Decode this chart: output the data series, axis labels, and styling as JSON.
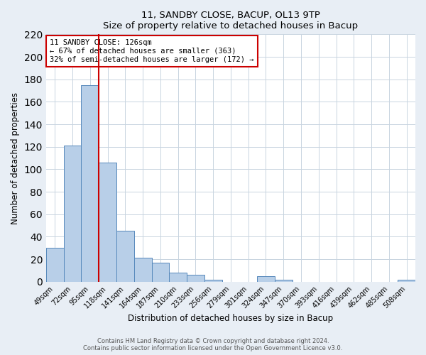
{
  "title": "11, SANDBY CLOSE, BACUP, OL13 9TP",
  "subtitle": "Size of property relative to detached houses in Bacup",
  "xlabel": "Distribution of detached houses by size in Bacup",
  "ylabel": "Number of detached properties",
  "categories": [
    "49sqm",
    "72sqm",
    "95sqm",
    "118sqm",
    "141sqm",
    "164sqm",
    "187sqm",
    "210sqm",
    "233sqm",
    "256sqm",
    "279sqm",
    "301sqm",
    "324sqm",
    "347sqm",
    "370sqm",
    "393sqm",
    "416sqm",
    "439sqm",
    "462sqm",
    "485sqm",
    "508sqm"
  ],
  "values": [
    30,
    121,
    175,
    106,
    45,
    21,
    17,
    8,
    6,
    2,
    0,
    0,
    5,
    2,
    0,
    0,
    0,
    0,
    0,
    0,
    2
  ],
  "bar_color": "#b8cfe8",
  "bar_edge_color": "#5588bb",
  "vline_after_index": 2,
  "vline_color": "#cc0000",
  "annotation_title": "11 SANDBY CLOSE: 126sqm",
  "annotation_line2": "← 67% of detached houses are smaller (363)",
  "annotation_line3": "32% of semi-detached houses are larger (172) →",
  "annotation_box_color": "#ffffff",
  "annotation_box_edge": "#cc0000",
  "ylim": [
    0,
    220
  ],
  "yticks": [
    0,
    20,
    40,
    60,
    80,
    100,
    120,
    140,
    160,
    180,
    200,
    220
  ],
  "footer1": "Contains HM Land Registry data © Crown copyright and database right 2024.",
  "footer2": "Contains public sector information licensed under the Open Government Licence v3.0.",
  "background_color": "#e8eef5",
  "plot_background": "#ffffff",
  "grid_color": "#c8d4e0"
}
